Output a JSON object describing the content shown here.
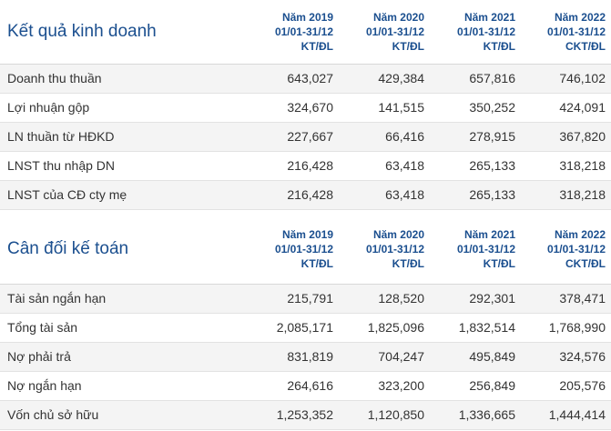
{
  "sections": [
    {
      "title": "Kết quả kinh doanh",
      "columns": [
        {
          "year": "Năm 2019",
          "period": "01/01-31/12",
          "audit": "KT/ĐL"
        },
        {
          "year": "Năm 2020",
          "period": "01/01-31/12",
          "audit": "KT/ĐL"
        },
        {
          "year": "Năm 2021",
          "period": "01/01-31/12",
          "audit": "KT/ĐL"
        },
        {
          "year": "Năm 2022",
          "period": "01/01-31/12",
          "audit": "CKT/ĐL"
        }
      ],
      "rows": [
        {
          "label": "Doanh thu thuần",
          "values": [
            "643,027",
            "429,384",
            "657,816",
            "746,102"
          ]
        },
        {
          "label": "Lợi nhuận gộp",
          "values": [
            "324,670",
            "141,515",
            "350,252",
            "424,091"
          ]
        },
        {
          "label": "LN thuần từ HĐKD",
          "values": [
            "227,667",
            "66,416",
            "278,915",
            "367,820"
          ]
        },
        {
          "label": "LNST thu nhập DN",
          "values": [
            "216,428",
            "63,418",
            "265,133",
            "318,218"
          ]
        },
        {
          "label": "LNST của CĐ cty mẹ",
          "values": [
            "216,428",
            "63,418",
            "265,133",
            "318,218"
          ]
        }
      ]
    },
    {
      "title": "Cân đối kế toán",
      "columns": [
        {
          "year": "Năm 2019",
          "period": "01/01-31/12",
          "audit": "KT/ĐL"
        },
        {
          "year": "Năm 2020",
          "period": "01/01-31/12",
          "audit": "KT/ĐL"
        },
        {
          "year": "Năm 2021",
          "period": "01/01-31/12",
          "audit": "KT/ĐL"
        },
        {
          "year": "Năm 2022",
          "period": "01/01-31/12",
          "audit": "CKT/ĐL"
        }
      ],
      "rows": [
        {
          "label": "Tài sản ngắn hạn",
          "values": [
            "215,791",
            "128,520",
            "292,301",
            "378,471"
          ]
        },
        {
          "label": "Tổng tài sản",
          "values": [
            "2,085,171",
            "1,825,096",
            "1,832,514",
            "1,768,990"
          ]
        },
        {
          "label": "Nợ phải trả",
          "values": [
            "831,819",
            "704,247",
            "495,849",
            "324,576"
          ]
        },
        {
          "label": "Nợ ngắn hạn",
          "values": [
            "264,616",
            "323,200",
            "256,849",
            "205,576"
          ]
        },
        {
          "label": "Vốn chủ sở hữu",
          "values": [
            "1,253,352",
            "1,120,850",
            "1,336,665",
            "1,444,414"
          ]
        }
      ]
    }
  ]
}
